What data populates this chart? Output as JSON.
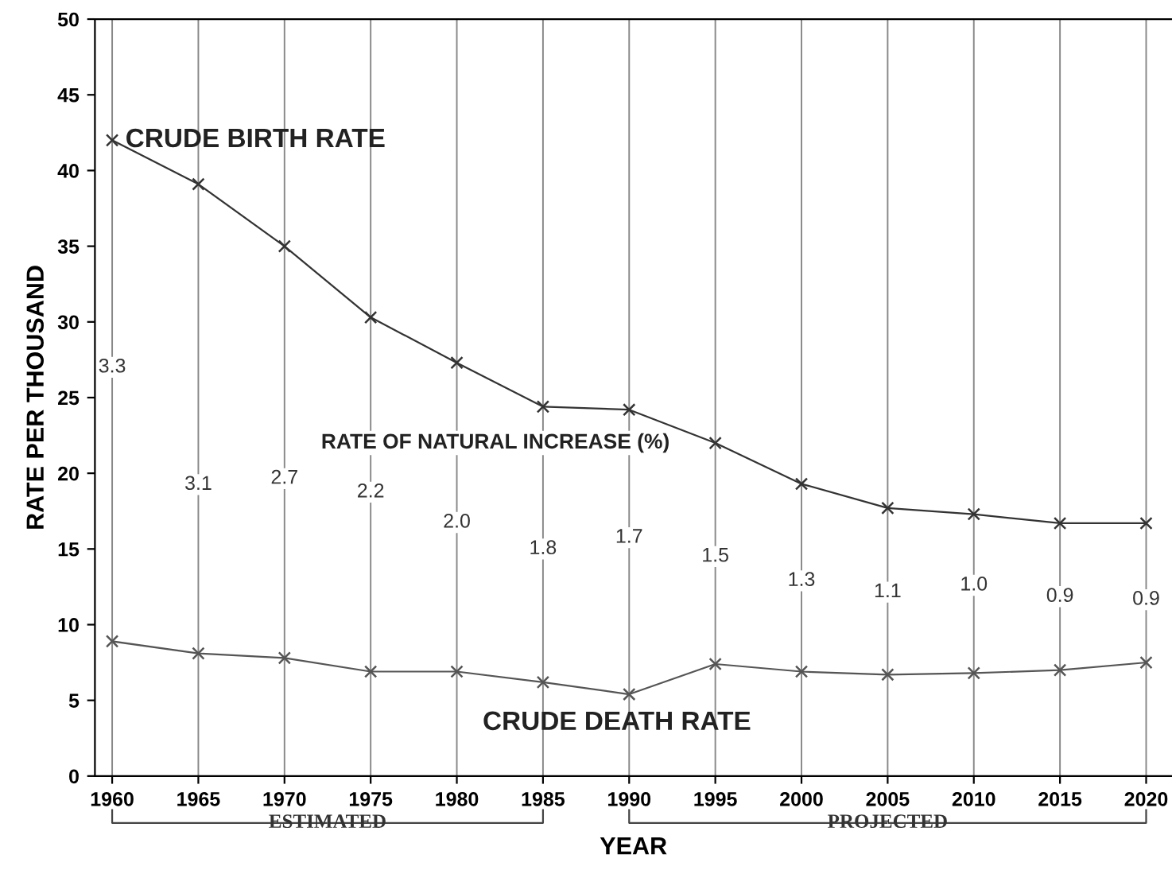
{
  "chart_data": {
    "type": "line",
    "xlabel": "YEAR",
    "ylabel": "RATE PER THOUSAND",
    "x": [
      1960,
      1965,
      1970,
      1975,
      1980,
      1985,
      1990,
      1995,
      2000,
      2005,
      2010,
      2015,
      2020
    ],
    "series": [
      {
        "name": "CRUDE BIRTH RATE",
        "color": "#333333",
        "values": [
          42.0,
          39.1,
          35.0,
          30.3,
          27.3,
          24.4,
          24.2,
          22.0,
          19.3,
          17.7,
          17.3,
          16.7,
          16.7
        ]
      },
      {
        "name": "CRUDE DEATH RATE",
        "color": "#555555",
        "values": [
          8.9,
          8.1,
          7.8,
          6.9,
          6.9,
          6.2,
          5.4,
          7.4,
          6.9,
          6.7,
          6.8,
          7.0,
          7.5
        ]
      }
    ],
    "annotations": [
      "RATE OF NATURAL INCREASE (%)",
      "3.3",
      "3.1",
      "2.7",
      "2.2",
      "2.0",
      "1.8",
      "1.7",
      "1.5",
      "1.3",
      "1.1",
      "1.0",
      "0.9",
      "0.9",
      "ESTIMATED",
      "PROJECTED"
    ],
    "xlim": [
      1959,
      2021.5
    ],
    "ylim": [
      0,
      50
    ],
    "xticks": [
      1960,
      1965,
      1970,
      1975,
      1980,
      1985,
      1990,
      1995,
      2000,
      2005,
      2010,
      2015,
      2020
    ],
    "yticks": [
      0,
      5,
      10,
      15,
      20,
      25,
      30,
      35,
      40,
      45,
      50
    ],
    "grid": "x",
    "marker": "cross",
    "line_style": "solid",
    "legend": false
  }
}
